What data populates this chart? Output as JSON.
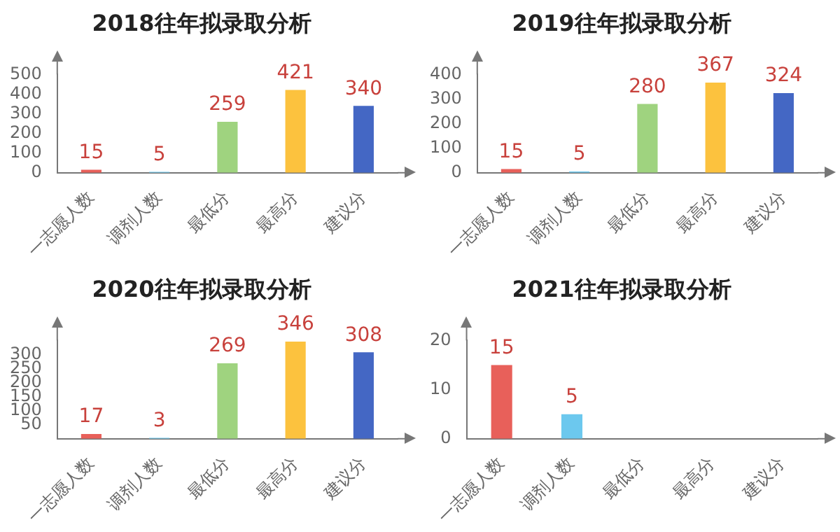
{
  "chart_data": [
    {
      "type": "bar",
      "title": "2018往年拟录取分析",
      "categories": [
        "一志愿人数",
        "调剂人数",
        "最低分",
        "最高分",
        "建议分"
      ],
      "values": [
        15,
        5,
        259,
        421,
        340
      ],
      "colors": [
        "#e8605a",
        "#6cc8ee",
        "#9fd37f",
        "#fcc23e",
        "#4467c4"
      ],
      "ylim": [
        0,
        500
      ],
      "yticks": [
        0,
        100,
        200,
        300,
        400,
        500
      ],
      "grid": false,
      "data_labels": true
    },
    {
      "type": "bar",
      "title": "2019往年拟录取分析",
      "categories": [
        "一志愿人数",
        "调剂人数",
        "最低分",
        "最高分",
        "建议分"
      ],
      "values": [
        15,
        5,
        280,
        367,
        324
      ],
      "colors": [
        "#e8605a",
        "#6cc8ee",
        "#9fd37f",
        "#fcc23e",
        "#4467c4"
      ],
      "ylim": [
        0,
        400
      ],
      "yticks": [
        0,
        100,
        200,
        300,
        400
      ],
      "grid": false,
      "data_labels": true
    },
    {
      "type": "bar",
      "title": "2020往年拟录取分析",
      "categories": [
        "一志愿人数",
        "调剂人数",
        "最低分",
        "最高分",
        "建议分"
      ],
      "values": [
        17,
        3,
        269,
        346,
        308
      ],
      "colors": [
        "#e8605a",
        "#6cc8ee",
        "#9fd37f",
        "#fcc23e",
        "#4467c4"
      ],
      "ylim": [
        0,
        350
      ],
      "yticks": [
        50,
        100,
        150,
        200,
        250,
        300
      ],
      "grid": false,
      "data_labels": true
    },
    {
      "type": "bar",
      "title": "2021往年拟录取分析",
      "categories": [
        "一志愿人数",
        "调剂人数",
        "最低分",
        "最高分",
        "建议分"
      ],
      "values": [
        15,
        5,
        null,
        null,
        null
      ],
      "colors": [
        "#e8605a",
        "#6cc8ee",
        "#9fd37f",
        "#fcc23e",
        "#4467c4"
      ],
      "ylim": [
        0,
        20
      ],
      "yticks": [
        0,
        10,
        20
      ],
      "grid": false,
      "data_labels": true
    }
  ]
}
